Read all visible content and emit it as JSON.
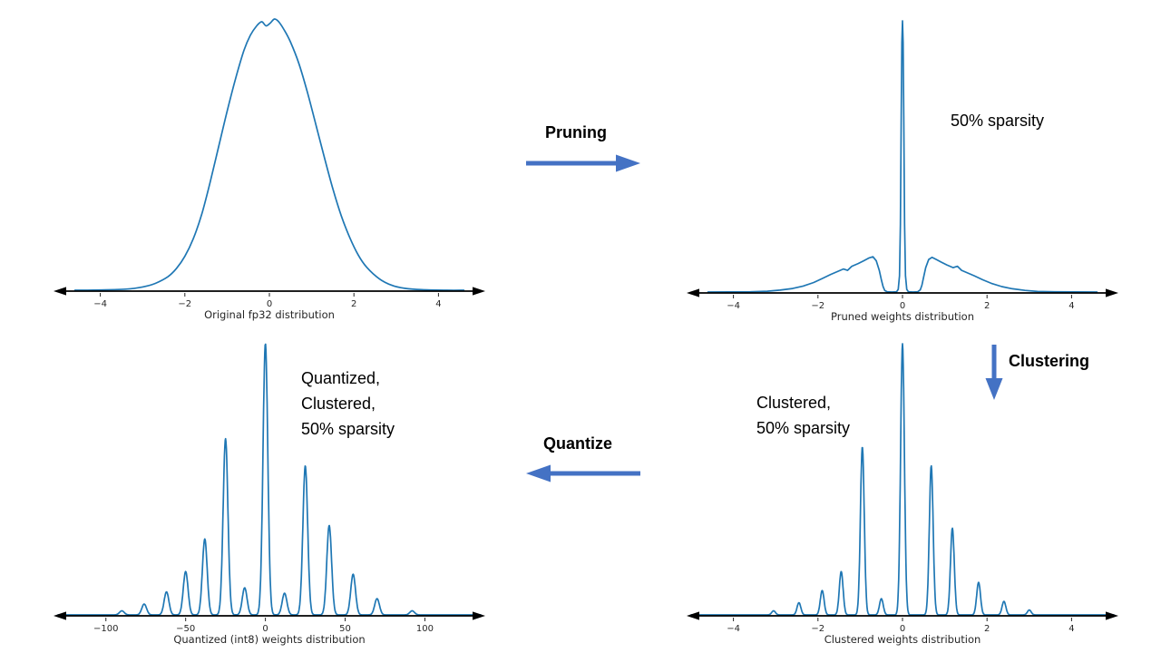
{
  "colors": {
    "curve": "#1f77b4",
    "arrow": "#4472c4",
    "axis": "#000000",
    "tick_text": "#262626",
    "background": "#ffffff"
  },
  "arrows": {
    "pruning": {
      "label": "Pruning",
      "direction": "right"
    },
    "clustering": {
      "label": "Clustering",
      "direction": "down"
    },
    "quantize": {
      "label": "Quantize",
      "direction": "left"
    }
  },
  "annotations": {
    "pruned": [
      "50% sparsity"
    ],
    "clustered": [
      "Clustered,",
      "50% sparsity"
    ],
    "quantized": [
      "Quantized,",
      "Clustered,",
      "50% sparsity"
    ]
  },
  "chart_data": [
    {
      "id": "original-fp32-distribution",
      "type": "line",
      "xlabel": "Original fp32 distribution",
      "xlim": [
        -5,
        5
      ],
      "xticks": [
        -4,
        -2,
        0,
        2,
        4
      ],
      "ylim": [
        0,
        1.05
      ],
      "grid": false,
      "legend": false,
      "series": [
        {
          "kind": "points",
          "smooth": true,
          "points": [
            [
              -4.6,
              0
            ],
            [
              -4.0,
              0.001
            ],
            [
              -3.4,
              0.004
            ],
            [
              -3.0,
              0.012
            ],
            [
              -2.7,
              0.025
            ],
            [
              -2.4,
              0.05
            ],
            [
              -2.2,
              0.08
            ],
            [
              -2.0,
              0.125
            ],
            [
              -1.8,
              0.19
            ],
            [
              -1.6,
              0.28
            ],
            [
              -1.4,
              0.4
            ],
            [
              -1.2,
              0.53
            ],
            [
              -1.0,
              0.66
            ],
            [
              -0.8,
              0.78
            ],
            [
              -0.6,
              0.885
            ],
            [
              -0.45,
              0.94
            ],
            [
              -0.3,
              0.975
            ],
            [
              -0.18,
              0.99
            ],
            [
              -0.08,
              0.975
            ],
            [
              0.02,
              0.985
            ],
            [
              0.12,
              1.0
            ],
            [
              0.22,
              0.99
            ],
            [
              0.35,
              0.96
            ],
            [
              0.5,
              0.915
            ],
            [
              0.7,
              0.835
            ],
            [
              0.9,
              0.73
            ],
            [
              1.1,
              0.61
            ],
            [
              1.3,
              0.49
            ],
            [
              1.5,
              0.375
            ],
            [
              1.7,
              0.275
            ],
            [
              1.9,
              0.195
            ],
            [
              2.1,
              0.13
            ],
            [
              2.3,
              0.085
            ],
            [
              2.6,
              0.042
            ],
            [
              2.9,
              0.018
            ],
            [
              3.2,
              0.007
            ],
            [
              3.6,
              0.002
            ],
            [
              4.2,
              0
            ],
            [
              4.6,
              0
            ]
          ]
        }
      ]
    },
    {
      "id": "pruned-weights-distribution",
      "type": "line",
      "xlabel": "Pruned weights distribution",
      "xlim": [
        -5,
        5
      ],
      "xticks": [
        -4,
        -2,
        0,
        2,
        4
      ],
      "ylim": [
        0,
        1.05
      ],
      "grid": false,
      "legend": false,
      "series": [
        {
          "kind": "points",
          "smooth": false,
          "points": [
            [
              -4.6,
              0
            ],
            [
              -3.6,
              0.001
            ],
            [
              -3.2,
              0.003
            ],
            [
              -2.9,
              0.007
            ],
            [
              -2.6,
              0.013
            ],
            [
              -2.35,
              0.022
            ],
            [
              -2.1,
              0.035
            ],
            [
              -1.9,
              0.05
            ],
            [
              -1.7,
              0.065
            ],
            [
              -1.55,
              0.075
            ],
            [
              -1.4,
              0.085
            ],
            [
              -1.3,
              0.08
            ],
            [
              -1.2,
              0.095
            ],
            [
              -1.05,
              0.105
            ],
            [
              -0.92,
              0.115
            ],
            [
              -0.8,
              0.125
            ],
            [
              -0.7,
              0.13
            ],
            [
              -0.62,
              0.115
            ],
            [
              -0.55,
              0.08
            ],
            [
              -0.5,
              0.045
            ],
            [
              -0.46,
              0.02
            ],
            [
              -0.42,
              0.006
            ],
            [
              -0.36,
              0.001
            ],
            [
              -0.25,
              0
            ],
            [
              -0.14,
              0.001
            ],
            [
              -0.1,
              0.01
            ],
            [
              -0.07,
              0.06
            ],
            [
              -0.05,
              0.25
            ],
            [
              -0.03,
              0.65
            ],
            [
              -0.015,
              0.92
            ],
            [
              0,
              1.0
            ],
            [
              0.015,
              0.92
            ],
            [
              0.03,
              0.65
            ],
            [
              0.05,
              0.25
            ],
            [
              0.07,
              0.06
            ],
            [
              0.1,
              0.01
            ],
            [
              0.14,
              0.001
            ],
            [
              0.25,
              0
            ],
            [
              0.36,
              0.001
            ],
            [
              0.42,
              0.008
            ],
            [
              0.46,
              0.025
            ],
            [
              0.5,
              0.055
            ],
            [
              0.55,
              0.09
            ],
            [
              0.62,
              0.12
            ],
            [
              0.7,
              0.128
            ],
            [
              0.8,
              0.12
            ],
            [
              0.92,
              0.11
            ],
            [
              1.05,
              0.1
            ],
            [
              1.2,
              0.09
            ],
            [
              1.3,
              0.095
            ],
            [
              1.4,
              0.08
            ],
            [
              1.55,
              0.07
            ],
            [
              1.7,
              0.06
            ],
            [
              1.9,
              0.045
            ],
            [
              2.1,
              0.032
            ],
            [
              2.35,
              0.02
            ],
            [
              2.6,
              0.012
            ],
            [
              2.9,
              0.006
            ],
            [
              3.2,
              0.002
            ],
            [
              3.6,
              0.001
            ],
            [
              4.6,
              0
            ]
          ]
        }
      ]
    },
    {
      "id": "quantized-int8-weights-distribution",
      "type": "line",
      "xlabel": "Quantized (int8) weights distribution",
      "xlim": [
        -130,
        135
      ],
      "xticks": [
        -100,
        -50,
        0,
        50,
        100
      ],
      "ylim": [
        0,
        1.05
      ],
      "grid": false,
      "legend": false,
      "series": [
        {
          "kind": "spikes",
          "spike_width": 1.5,
          "spikes": [
            [
              -90,
              0.015
            ],
            [
              -76,
              0.04
            ],
            [
              -62,
              0.085
            ],
            [
              -50,
              0.16
            ],
            [
              -38,
              0.28
            ],
            [
              -25,
              0.65
            ],
            [
              -13,
              0.1
            ],
            [
              0,
              1.0
            ],
            [
              12,
              0.08
            ],
            [
              25,
              0.55
            ],
            [
              40,
              0.33
            ],
            [
              55,
              0.15
            ],
            [
              70,
              0.06
            ],
            [
              92,
              0.015
            ]
          ]
        }
      ]
    },
    {
      "id": "clustered-weights-distribution",
      "type": "line",
      "xlabel": "Clustered weights distribution",
      "xlim": [
        -5,
        5
      ],
      "xticks": [
        -4,
        -2,
        0,
        2,
        4
      ],
      "ylim": [
        0,
        1.05
      ],
      "grid": false,
      "legend": false,
      "series": [
        {
          "kind": "spikes",
          "spike_width": 0.045,
          "spikes": [
            [
              -3.05,
              0.015
            ],
            [
              -2.45,
              0.045
            ],
            [
              -1.9,
              0.09
            ],
            [
              -1.45,
              0.16
            ],
            [
              -0.95,
              0.62
            ],
            [
              -0.5,
              0.06
            ],
            [
              0,
              1.0
            ],
            [
              0.68,
              0.55
            ],
            [
              1.18,
              0.32
            ],
            [
              1.8,
              0.12
            ],
            [
              2.4,
              0.05
            ],
            [
              3.0,
              0.018
            ]
          ]
        }
      ]
    }
  ]
}
